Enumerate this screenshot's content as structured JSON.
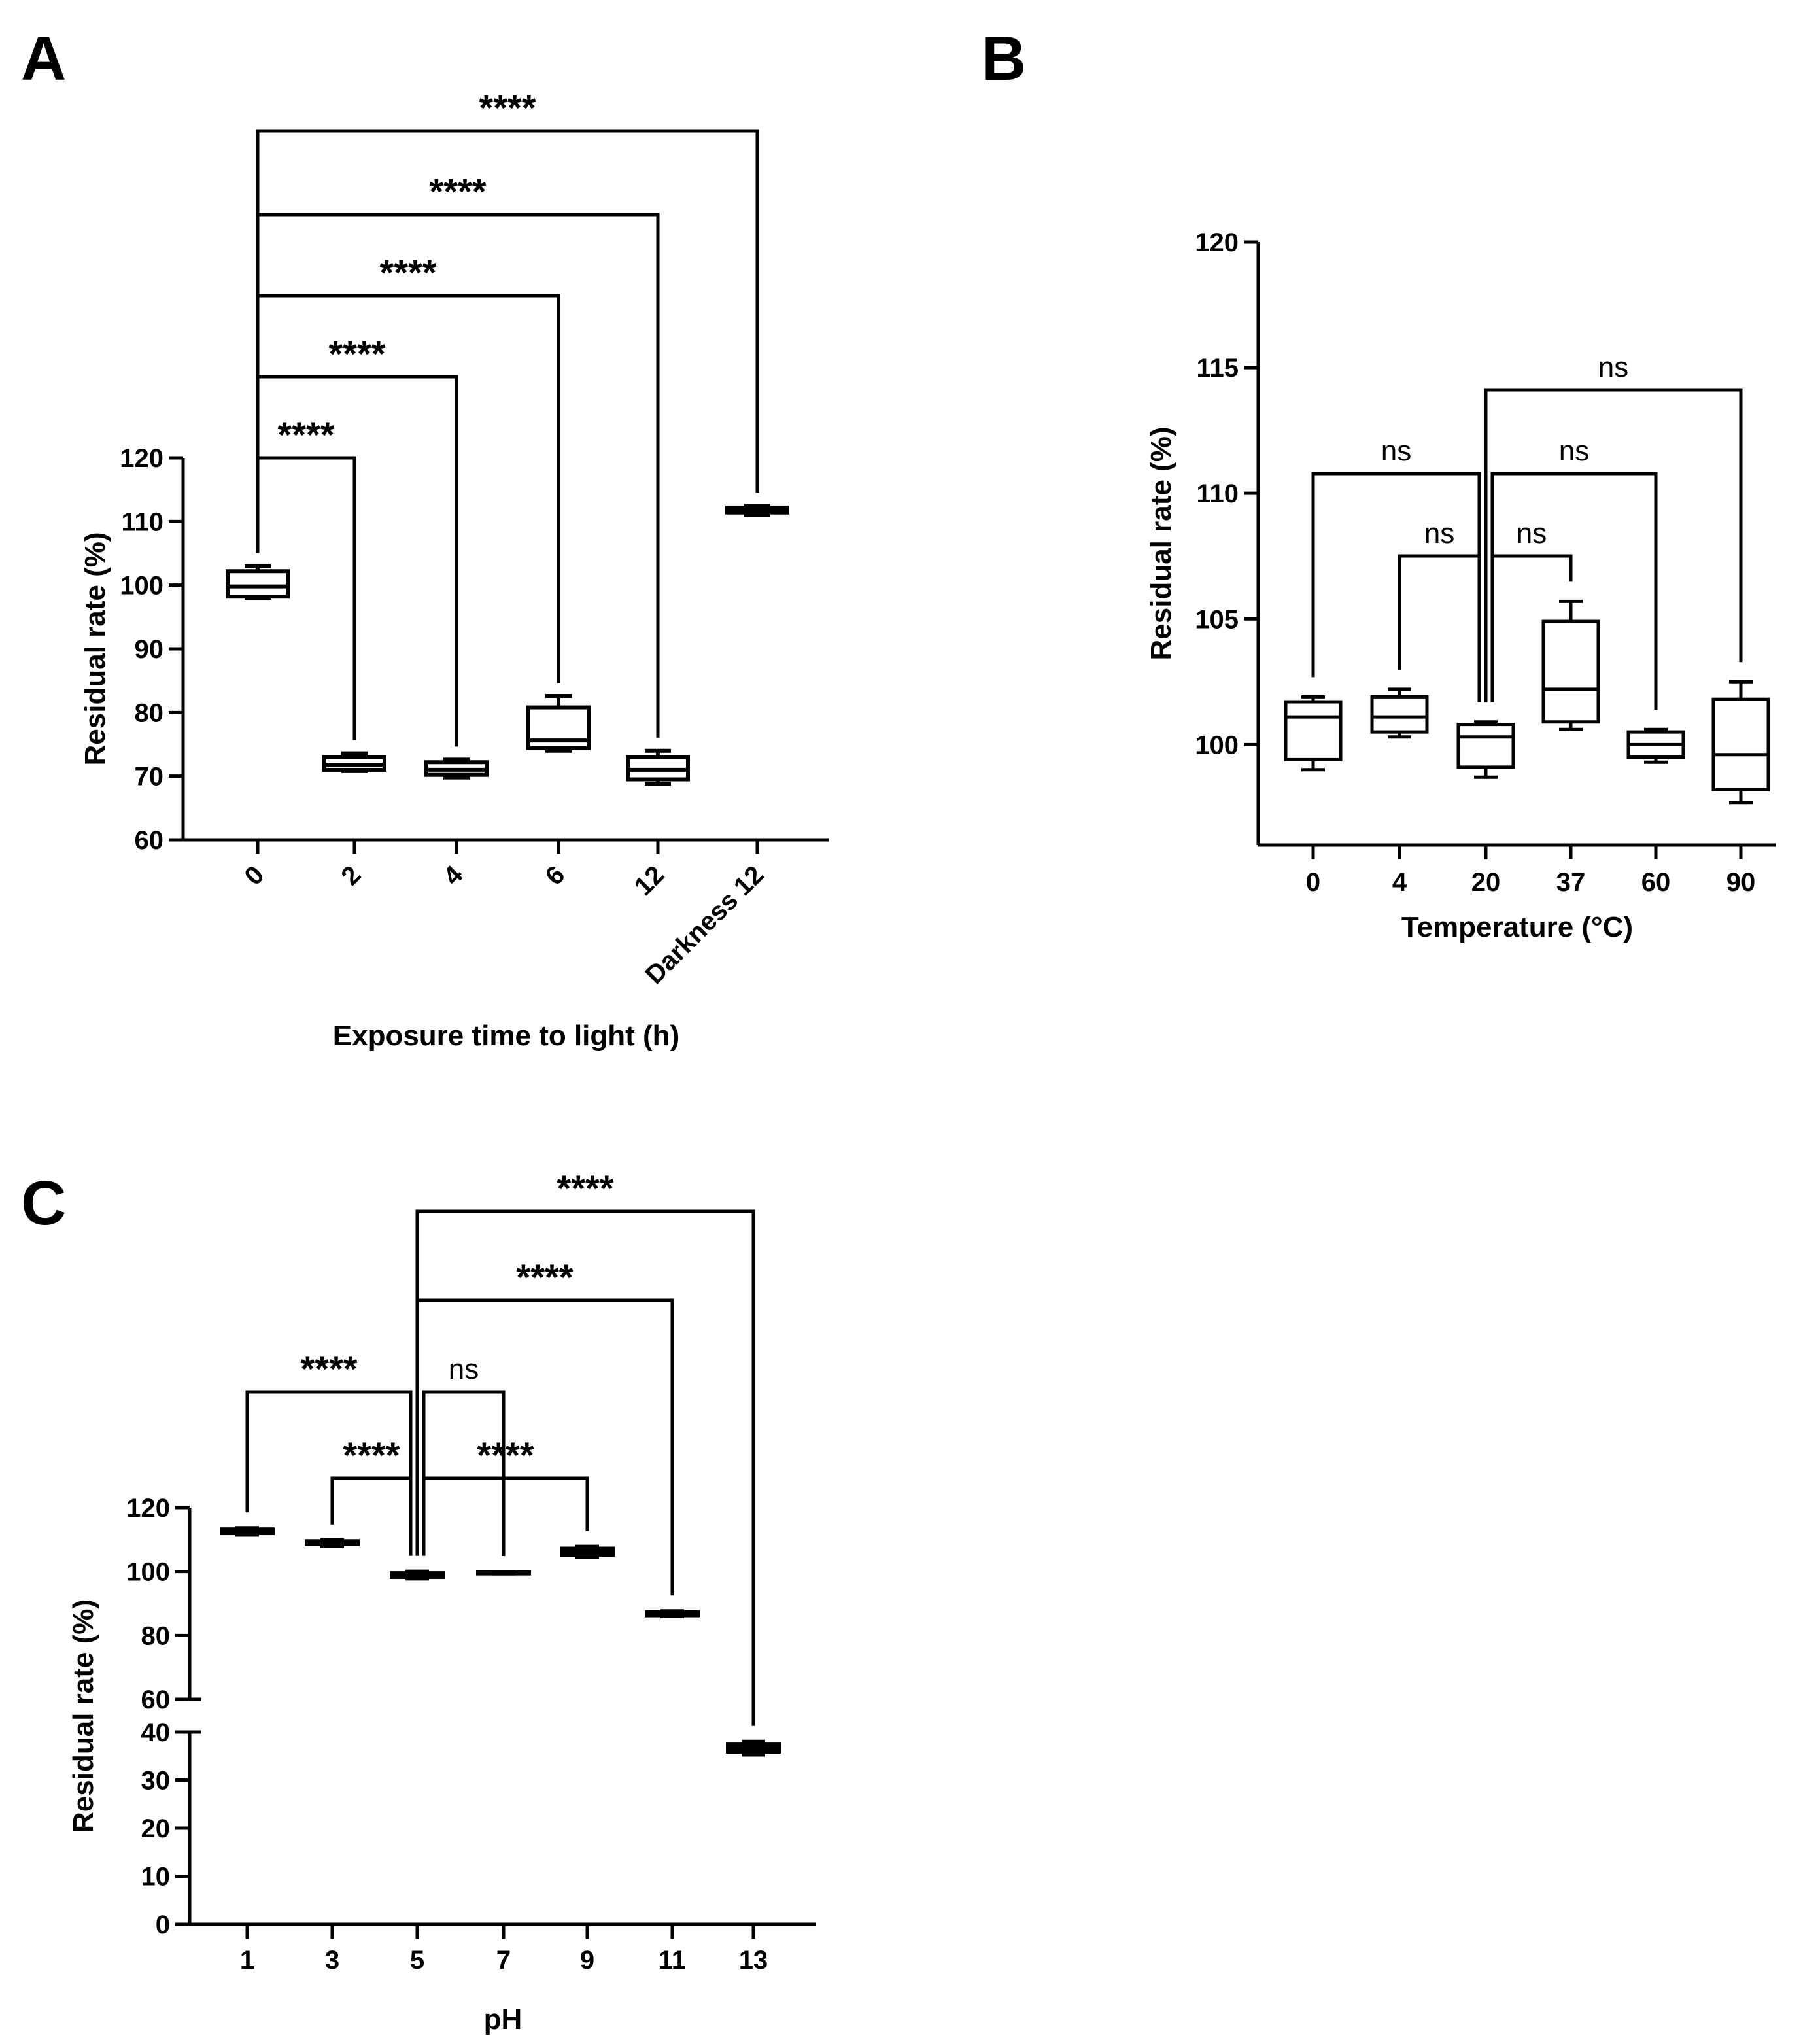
{
  "colors": {
    "stroke": "#000000",
    "background": "#ffffff"
  },
  "chart_data": [
    {
      "panel": "A",
      "type": "box",
      "xlabel": "Exposure time to light (h)",
      "ylabel": "Residual rate (%)",
      "ylim": [
        60,
        120
      ],
      "yticks": [
        60,
        70,
        80,
        90,
        100,
        110,
        120
      ],
      "tick_rotation": "-45",
      "categories": [
        "0",
        "2",
        "4",
        "6",
        "12",
        "Darkness 12"
      ],
      "boxes": [
        {
          "min": 98,
          "q1": 98.2,
          "median": 99.8,
          "q3": 102.2,
          "max": 103
        },
        {
          "min": 70.8,
          "q1": 71,
          "median": 71.8,
          "q3": 73,
          "max": 73.6
        },
        {
          "min": 69.8,
          "q1": 70.2,
          "median": 71,
          "q3": 72.2,
          "max": 72.6
        },
        {
          "min": 74,
          "q1": 74.4,
          "median": 75.6,
          "q3": 80.8,
          "max": 82.6
        },
        {
          "min": 68.8,
          "q1": 69.5,
          "median": 71,
          "q3": 73,
          "max": 74
        },
        {
          "min": 111,
          "q1": 111.4,
          "median": 111.8,
          "q3": 112.2,
          "max": 112.5
        }
      ],
      "comparisons": [
        {
          "from": 0,
          "to": 1,
          "label": "****",
          "level": 1
        },
        {
          "from": 0,
          "to": 2,
          "label": "****",
          "level": 2
        },
        {
          "from": 0,
          "to": 3,
          "label": "****",
          "level": 3
        },
        {
          "from": 0,
          "to": 4,
          "label": "****",
          "level": 4
        },
        {
          "from": 0,
          "to": 5,
          "label": "****",
          "level": 5
        }
      ]
    },
    {
      "panel": "B",
      "type": "box",
      "xlabel": "Temperature (°C)",
      "ylabel": "Residual rate (%)",
      "ylim": [
        96,
        120
      ],
      "yticks": [
        100,
        105,
        110,
        115,
        120
      ],
      "tick_rotation": "0",
      "categories": [
        "0",
        "4",
        "20",
        "37",
        "60",
        "90"
      ],
      "boxes": [
        {
          "min": 99,
          "q1": 99.4,
          "median": 101.1,
          "q3": 101.7,
          "max": 101.9
        },
        {
          "min": 100.3,
          "q1": 100.5,
          "median": 101.1,
          "q3": 101.9,
          "max": 102.2
        },
        {
          "min": 98.7,
          "q1": 99.1,
          "median": 100.3,
          "q3": 100.8,
          "max": 100.9
        },
        {
          "min": 100.6,
          "q1": 100.9,
          "median": 102.2,
          "q3": 104.9,
          "max": 105.7
        },
        {
          "min": 99.3,
          "q1": 99.5,
          "median": 100,
          "q3": 100.5,
          "max": 100.6
        },
        {
          "min": 97.7,
          "q1": 98.2,
          "median": 99.6,
          "q3": 101.8,
          "max": 102.5
        }
      ],
      "comparisons": [
        {
          "from": 0,
          "to": 2,
          "label": "ns",
          "level": 2,
          "mirror": "left"
        },
        {
          "from": 1,
          "to": 2,
          "label": "ns",
          "level": 1,
          "mirror": "left"
        },
        {
          "from": 2,
          "to": 3,
          "label": "ns",
          "level": 1,
          "mirror": "right"
        },
        {
          "from": 2,
          "to": 4,
          "label": "ns",
          "level": 2,
          "mirror": "right"
        },
        {
          "from": 2,
          "to": 5,
          "label": "ns",
          "level": 3
        }
      ]
    },
    {
      "panel": "C",
      "type": "box",
      "xlabel": "pH",
      "ylabel": "Residual rate (%)",
      "ylim": [
        0,
        120
      ],
      "broken_axis": {
        "lower": [
          0,
          40
        ],
        "upper": [
          60,
          120
        ]
      },
      "yticks": [
        0,
        10,
        20,
        30,
        40,
        60,
        80,
        100,
        120
      ],
      "tick_rotation": "0",
      "categories": [
        "1",
        "3",
        "5",
        "7",
        "9",
        "11",
        "13"
      ],
      "boxes": [
        {
          "min": 111.5,
          "q1": 112,
          "median": 112.5,
          "q3": 113.2,
          "max": 113.6
        },
        {
          "min": 108,
          "q1": 108.6,
          "median": 109,
          "q3": 109.5,
          "max": 109.8
        },
        {
          "min": 97.8,
          "q1": 98.3,
          "median": 98.8,
          "q3": 99.5,
          "max": 100
        },
        {
          "min": 99.4,
          "q1": 99.5,
          "median": 99.6,
          "q3": 99.8,
          "max": 99.9
        },
        {
          "min": 104.5,
          "q1": 105.2,
          "median": 106.3,
          "q3": 107.2,
          "max": 107.8
        },
        {
          "min": 86,
          "q1": 86.3,
          "median": 86.8,
          "q3": 87.3,
          "max": 87.6
        },
        {
          "min": 35.3,
          "q1": 35.9,
          "median": 36.6,
          "q3": 37.4,
          "max": 38
        }
      ],
      "comparisons": [
        {
          "from": 1,
          "to": 2,
          "label": "****",
          "level": 1,
          "mirror": "left"
        },
        {
          "from": 2,
          "to": 4,
          "label": "****",
          "level": 1,
          "mirror": "right"
        },
        {
          "from": 0,
          "to": 2,
          "label": "****",
          "level": 2,
          "mirror": "left"
        },
        {
          "from": 2,
          "to": 3,
          "label": "ns",
          "level": 2,
          "mirror": "right"
        },
        {
          "from": 2,
          "to": 5,
          "label": "****",
          "level": 3
        },
        {
          "from": 2,
          "to": 6,
          "label": "****",
          "level": 4
        }
      ]
    }
  ]
}
